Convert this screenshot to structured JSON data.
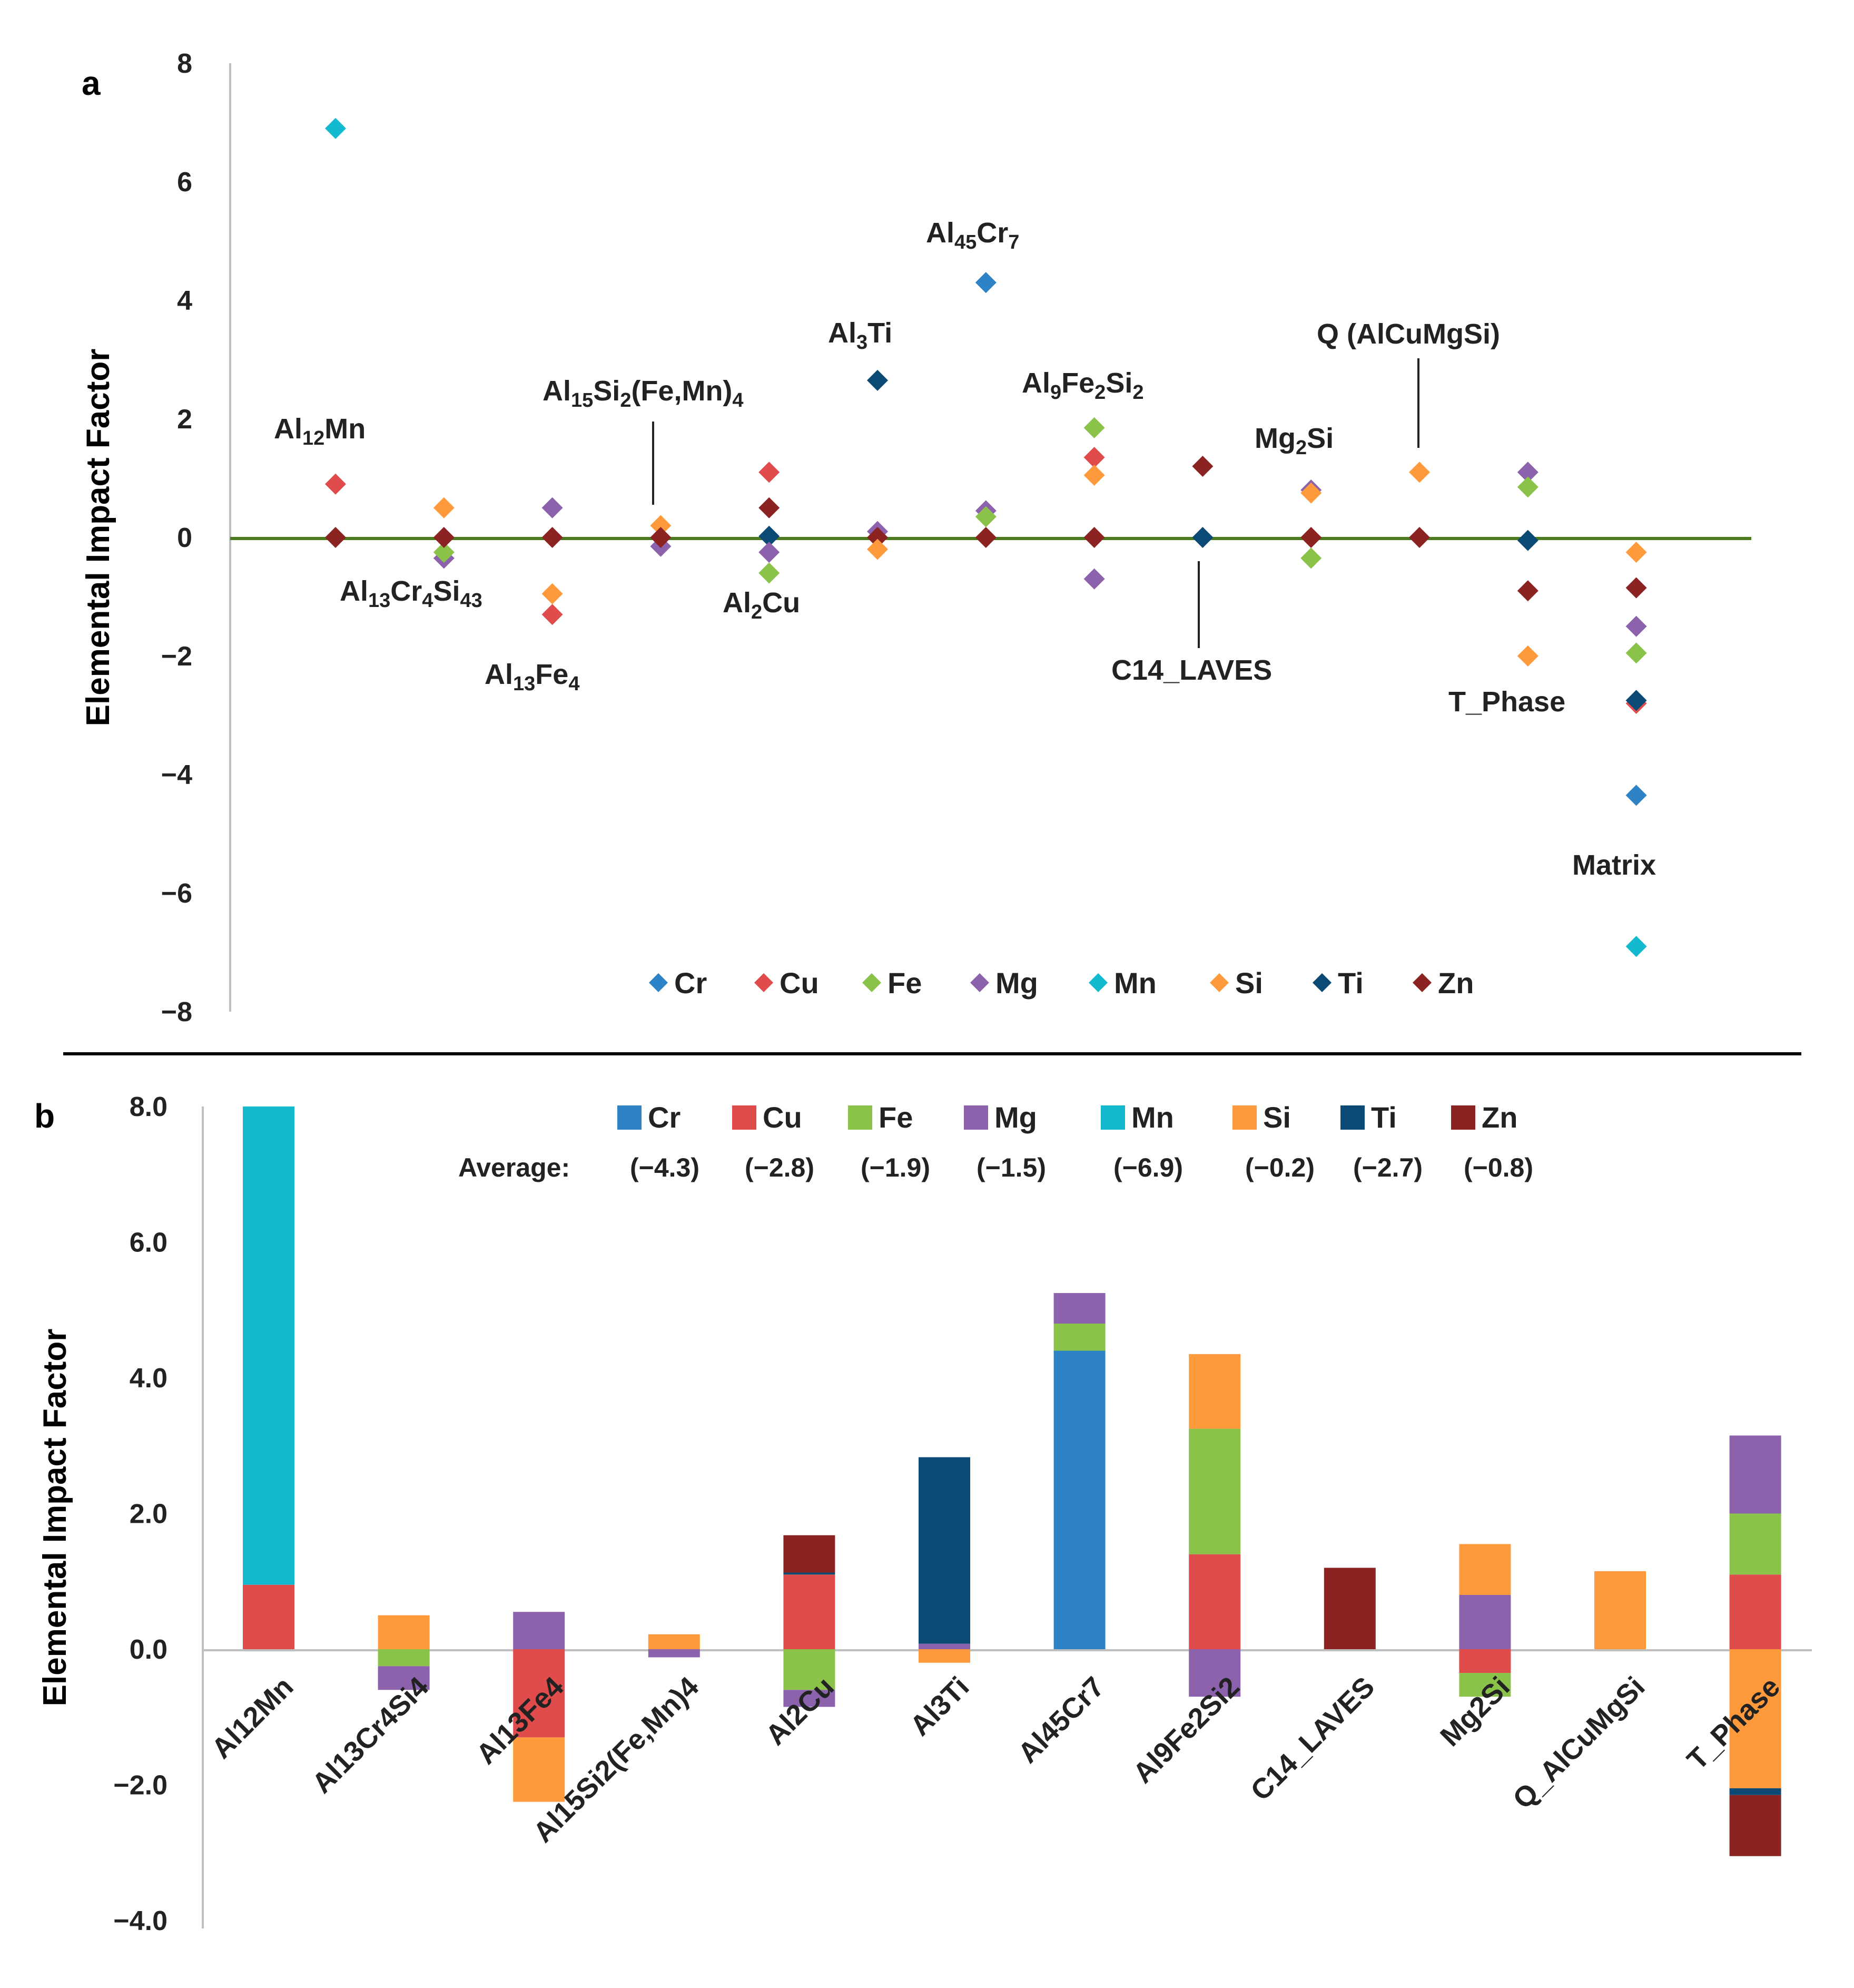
{
  "chart_data": [
    {
      "panel": "a",
      "type": "scatter",
      "ylabel": "Elemental Impact Factor",
      "ylim": [
        -8,
        8
      ],
      "yticks": [
        "8",
        "6",
        "4",
        "2",
        "0",
        "−2",
        "−4",
        "−6",
        "−8"
      ],
      "legend": [
        {
          "name": "Cr",
          "color": "#2e83c6"
        },
        {
          "name": "Cu",
          "color": "#e04b4b"
        },
        {
          "name": "Fe",
          "color": "#8bc34a"
        },
        {
          "name": "Mg",
          "color": "#8d62ac"
        },
        {
          "name": "Mn",
          "color": "#12b9cf"
        },
        {
          "name": "Si",
          "color": "#ff9a3c"
        },
        {
          "name": "Ti",
          "color": "#0b4a75"
        },
        {
          "name": "Zn",
          "color": "#8b2323"
        }
      ],
      "phases": [
        {
          "name": "Al12Mn",
          "points": {
            "Mn": 6.9,
            "Cu": 0.9,
            "Zn": 0.0
          }
        },
        {
          "name": "Al13Cr4Si43",
          "points": {
            "Si": 0.5,
            "Mg": -0.35,
            "Fe": -0.25,
            "Zn": 0.0
          }
        },
        {
          "name": "Al13Fe4",
          "points": {
            "Mg": 0.5,
            "Si": -0.95,
            "Cu": -1.3,
            "Zn": 0.0
          }
        },
        {
          "name": "Al15Si2(Fe,Mn)4",
          "points": {
            "Si": 0.2,
            "Mg": -0.15,
            "Zn": 0.0
          }
        },
        {
          "name": "Al2Cu",
          "points": {
            "Cu": 1.1,
            "Zn": 0.5,
            "Ti": 0.02,
            "Mg": -0.25,
            "Fe": -0.6
          }
        },
        {
          "name": "Al3Ti",
          "points": {
            "Ti": 2.65,
            "Mg": 0.1,
            "Zn": 0.0,
            "Si": -0.2
          }
        },
        {
          "name": "Al45Cr7",
          "points": {
            "Cr": 4.3,
            "Mg": 0.45,
            "Fe": 0.35,
            "Zn": 0.0
          }
        },
        {
          "name": "Al9Fe2Si2",
          "points": {
            "Fe": 1.85,
            "Cu": 1.35,
            "Si": 1.05,
            "Zn": 0.0,
            "Mg": -0.7
          }
        },
        {
          "name": "C14_LAVES",
          "points": {
            "Zn": 1.2,
            "Ti": 0.0
          }
        },
        {
          "name": "Mg2Si",
          "points": {
            "Mg": 0.8,
            "Si": 0.75,
            "Zn": 0.0,
            "Fe": -0.35
          }
        },
        {
          "name": "Q_AlCuMgSi",
          "points": {
            "Si": 1.1,
            "Zn": 0.0
          }
        },
        {
          "name": "T_Phase",
          "points": {
            "Mg": 1.1,
            "Fe": 0.85,
            "Ti": -0.05,
            "Zn": -0.9,
            "Si": -2.0
          }
        },
        {
          "name": "Matrix",
          "points": {
            "Si": -0.25,
            "Zn": -0.85,
            "Mg": -1.5,
            "Fe": -1.95,
            "Cu": -2.8,
            "Ti": -2.75,
            "Cr": -4.35,
            "Mn": -6.9
          }
        }
      ],
      "annotations": {
        "Al12Mn": [
          "Al",
          "12",
          "Mn",
          ""
        ],
        "Al13Cr4Si43": [
          "Al",
          "13",
          "Cr",
          "4",
          "Si",
          "43"
        ],
        "Al13Fe4": [
          "Al",
          "13",
          "Fe",
          "4"
        ],
        "Al15Si2FeMn4": [
          "Al",
          "15",
          "Si",
          "2",
          "(Fe,Mn)",
          "4"
        ],
        "Al2Cu": [
          "Al",
          "2",
          "Cu",
          ""
        ],
        "Al3Ti": [
          "Al",
          "3",
          "Ti",
          ""
        ],
        "Al45Cr7": [
          "Al",
          "45",
          "Cr",
          "7"
        ],
        "Al9Fe2Si2": [
          "Al",
          "9",
          "Fe",
          "2",
          "Si",
          "2"
        ],
        "Mg2Si": [
          "Mg",
          "2",
          "Si",
          ""
        ],
        "Q": "Q (AlCuMgSi)",
        "C14": "C14_LAVES",
        "T": "T_Phase",
        "Matrix": "Matrix"
      }
    },
    {
      "panel": "b",
      "type": "bar",
      "stacked": true,
      "ylabel": "Elemental Impact Factor",
      "ylim": [
        -4,
        8
      ],
      "yticks": [
        "8.0",
        "6.0",
        "4.0",
        "2.0",
        "0.0",
        "−2.0",
        "−4.0"
      ],
      "categories": [
        "Al12Mn",
        "Al13Cr4Si4",
        "Al13Fe4",
        "Al15Si2(Fe,Mn)4",
        "Al2Cu",
        "Al3Ti",
        "Al45Cr7",
        "Al9Fe2Si2",
        "C14_LAVES",
        "Mg2Si",
        "Q_AlCuMgSi",
        "T_Phase"
      ],
      "average_label": "Average:",
      "series": [
        {
          "name": "Cr",
          "color": "#2e83c6",
          "average": "(−4.3)",
          "values": [
            0,
            0,
            0,
            0,
            0,
            0,
            4.4,
            0,
            0,
            0,
            0,
            0
          ]
        },
        {
          "name": "Cu",
          "color": "#e04b4b",
          "average": "(−2.8)",
          "values": [
            0.95,
            0,
            -1.3,
            0,
            1.1,
            0,
            0,
            1.4,
            0,
            -0.35,
            0,
            1.1
          ]
        },
        {
          "name": "Fe",
          "color": "#8bc34a",
          "average": "(−1.9)",
          "values": [
            0,
            -0.25,
            0,
            0,
            -0.6,
            0,
            0.4,
            1.85,
            0,
            -0.35,
            0,
            0.9
          ]
        },
        {
          "name": "Mg",
          "color": "#8d62ac",
          "average": "(−1.5)",
          "values": [
            0,
            -0.35,
            0.55,
            -0.12,
            -0.25,
            0.08,
            0.45,
            -0.7,
            0,
            0.8,
            0,
            1.15
          ]
        },
        {
          "name": "Mn",
          "color": "#12b9cf",
          "average": "(−6.9)",
          "values": [
            7.05,
            0,
            0,
            0,
            0,
            0,
            0,
            0,
            0,
            0,
            0,
            0
          ]
        },
        {
          "name": "Si",
          "color": "#ff9a3c",
          "average": "(−0.2)",
          "values": [
            0,
            0.5,
            -0.95,
            0.22,
            0,
            -0.2,
            0,
            1.1,
            0,
            0.75,
            1.15,
            -2.05
          ]
        },
        {
          "name": "Ti",
          "color": "#0b4a75",
          "average": "(−2.7)",
          "values": [
            0,
            0,
            0,
            0,
            0.03,
            2.75,
            0,
            0,
            0,
            0,
            0,
            -0.1
          ]
        },
        {
          "name": "Zn",
          "color": "#8b2323",
          "average": "(−0.8)",
          "values": [
            0,
            0,
            0,
            0,
            0.55,
            0,
            0,
            0,
            1.2,
            0,
            0,
            -0.9
          ]
        }
      ]
    }
  ]
}
